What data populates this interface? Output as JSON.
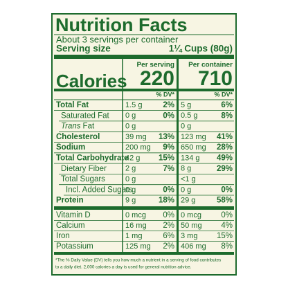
{
  "title": "Nutrition Facts",
  "servings": "About 3 servings per container",
  "serving_size": {
    "label": "Serving size",
    "value": "1¼ Cups (80g)"
  },
  "calories": {
    "label": "Calories",
    "columns": [
      {
        "header": "Per serving",
        "value": "220"
      },
      {
        "header": "Per container",
        "value": "710"
      }
    ]
  },
  "dv_headers": [
    "% DV*",
    "% DV*"
  ],
  "rows": [
    {
      "name": "Total Fat",
      "bold": true,
      "indent": 0,
      "cells": [
        [
          "1.5 g",
          "2%"
        ],
        [
          "5 g",
          "6%"
        ]
      ]
    },
    {
      "name": "Saturated Fat",
      "bold": false,
      "indent": 1,
      "cells": [
        [
          "0 g",
          "0%"
        ],
        [
          "0.5 g",
          "8%"
        ]
      ]
    },
    {
      "name_italic": "Trans",
      "name": "Fat",
      "bold": false,
      "indent": 1,
      "cells": [
        [
          "0 g"
        ],
        [
          "0 g"
        ]
      ]
    },
    {
      "name": "Cholesterol",
      "bold": true,
      "indent": 0,
      "cells": [
        [
          "39 mg",
          "13%"
        ],
        [
          "123 mg",
          "41%"
        ]
      ]
    },
    {
      "name": "Sodium",
      "bold": true,
      "indent": 0,
      "cells": [
        [
          "200 mg",
          "9%"
        ],
        [
          "650 mg",
          "28%"
        ]
      ]
    },
    {
      "name": "Total Carbohydrate",
      "bold": true,
      "indent": 0,
      "cells": [
        [
          "42 g",
          "15%"
        ],
        [
          "134 g",
          "49%"
        ]
      ]
    },
    {
      "name": "Dietary Fiber",
      "bold": false,
      "indent": 1,
      "cells": [
        [
          "2 g",
          "7%"
        ],
        [
          "8 g",
          "29%"
        ]
      ]
    },
    {
      "name": "Total Sugars",
      "bold": false,
      "indent": 1,
      "cells": [
        [
          "0 g"
        ],
        [
          "<1 g"
        ]
      ]
    },
    {
      "name": "Incl. Added Sugars",
      "bold": false,
      "indent": 2,
      "cells": [
        [
          "0 g",
          "0%"
        ],
        [
          "0 g",
          "0%"
        ]
      ]
    },
    {
      "name": "Protein",
      "bold": true,
      "indent": 0,
      "cells": [
        [
          "9 g",
          "18%"
        ],
        [
          "29 g",
          "58%"
        ]
      ]
    }
  ],
  "vitamins": [
    {
      "name": "Vitamin D",
      "cells": [
        [
          "0 mcg",
          "0%"
        ],
        [
          "0 mcg",
          "0%"
        ]
      ]
    },
    {
      "name": "Calcium",
      "cells": [
        [
          "16 mg",
          "2%"
        ],
        [
          "50 mg",
          "4%"
        ]
      ]
    },
    {
      "name": "Iron",
      "cells": [
        [
          "1 mg",
          "6%"
        ],
        [
          "3 mg",
          "15%"
        ]
      ]
    },
    {
      "name": "Potassium",
      "cells": [
        [
          "125 mg",
          "2%"
        ],
        [
          "406 mg",
          "8%"
        ]
      ]
    }
  ],
  "footnote": [
    "*The % Daily Value (DV) tells you how much a nutrient in a serving of food contributes",
    "to a daily diet. 2,000 calories a day is used for general nutrition advice."
  ]
}
